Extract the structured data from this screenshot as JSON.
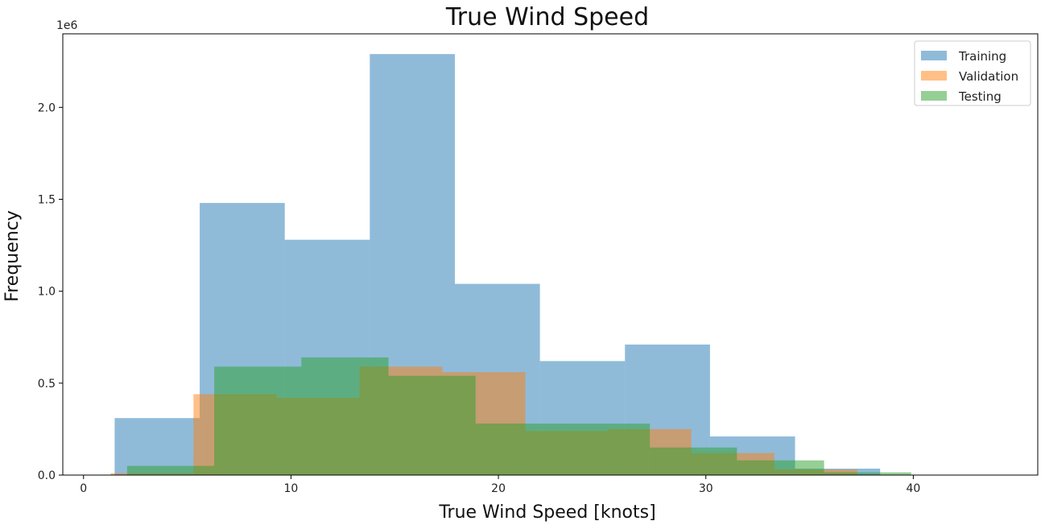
{
  "chart_data": {
    "type": "histogram",
    "title": "True Wind Speed",
    "xlabel": "True Wind Speed [knots]",
    "ylabel": "Frequency",
    "y_offset_label": "1e6",
    "xlim": [
      -1,
      46
    ],
    "ylim": [
      0,
      2.4
    ],
    "x_ticks": [
      0,
      10,
      20,
      30,
      40
    ],
    "y_ticks": [
      0.0,
      0.5,
      1.0,
      1.5,
      2.0
    ],
    "y_tick_labels": [
      "0.0",
      "0.5",
      "1.0",
      "1.5",
      "2.0"
    ],
    "legend_position": "top-right",
    "series": [
      {
        "name": "Training",
        "color": "#1f77b4",
        "edges": [
          1.5,
          5.6,
          9.7,
          13.8,
          17.9,
          22.0,
          26.1,
          30.2,
          34.3,
          38.4
        ],
        "values": [
          0.31,
          1.48,
          1.28,
          2.29,
          1.04,
          0.62,
          0.71,
          0.21,
          0.035
        ]
      },
      {
        "name": "Validation",
        "color": "#ff7f0e",
        "edges": [
          1.3,
          5.3,
          9.3,
          13.3,
          17.3,
          21.3,
          25.3,
          29.3,
          33.3,
          37.3
        ],
        "values": [
          0.01,
          0.44,
          0.42,
          0.59,
          0.56,
          0.24,
          0.25,
          0.12,
          0.03
        ]
      },
      {
        "name": "Testing",
        "color": "#2ca02c",
        "edges": [
          2.1,
          6.3,
          10.5,
          14.7,
          18.9,
          23.1,
          27.3,
          31.5,
          35.7,
          39.9
        ],
        "values": [
          0.05,
          0.59,
          0.64,
          0.54,
          0.28,
          0.28,
          0.15,
          0.08,
          0.015
        ]
      }
    ]
  }
}
